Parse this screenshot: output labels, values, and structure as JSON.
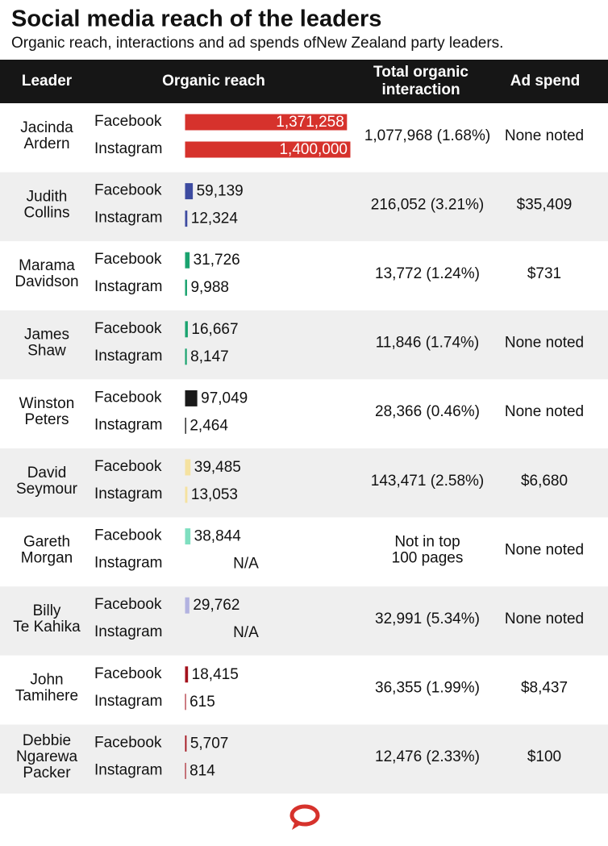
{
  "header": {
    "title": "Social media reach of the leaders",
    "subtitle": "Organic reach, interactions and ad spends ofNew Zealand party leaders."
  },
  "table": {
    "columns": [
      [
        "Leader"
      ],
      [
        "Organic reach"
      ],
      [
        "Total organic",
        "interaction"
      ],
      [
        "Ad spend"
      ]
    ],
    "rows": [
      {
        "leader": [
          "Jacinda",
          "Ardern"
        ],
        "color": "#d6322c",
        "reach": [
          {
            "platform": "Facebook",
            "value": 1371258,
            "label": "1,371,258"
          },
          {
            "platform": "Instagram",
            "value": 1400000,
            "label": "1,400,000"
          }
        ],
        "interaction": [
          "1,077,968 (1.68%)"
        ],
        "ad_spend": "None noted"
      },
      {
        "leader": [
          "Judith",
          "Collins"
        ],
        "color": "#3d4ba0",
        "reach": [
          {
            "platform": "Facebook",
            "value": 59139,
            "label": "59,139"
          },
          {
            "platform": "Instagram",
            "value": 12324,
            "label": "12,324"
          }
        ],
        "interaction": [
          "216,052 (3.21%)"
        ],
        "ad_spend": "$35,409"
      },
      {
        "leader": [
          "Marama",
          "Davidson"
        ],
        "color": "#1aa36f",
        "reach": [
          {
            "platform": "Facebook",
            "value": 31726,
            "label": "31,726"
          },
          {
            "platform": "Instagram",
            "value": 9988,
            "label": "9,988"
          }
        ],
        "interaction": [
          "13,772 (1.24%)"
        ],
        "ad_spend": "$731"
      },
      {
        "leader": [
          "James",
          "Shaw"
        ],
        "color": "#1aa36f",
        "reach": [
          {
            "platform": "Facebook",
            "value": 16667,
            "label": "16,667"
          },
          {
            "platform": "Instagram",
            "value": 8147,
            "label": "8,147"
          }
        ],
        "interaction": [
          "11,846 (1.74%)"
        ],
        "ad_spend": "None noted"
      },
      {
        "leader": [
          "Winston",
          "Peters"
        ],
        "color": "#1a1a1a",
        "reach": [
          {
            "platform": "Facebook",
            "value": 97049,
            "label": "97,049"
          },
          {
            "platform": "Instagram",
            "value": 2464,
            "label": "2,464"
          }
        ],
        "interaction": [
          "28,366 (0.46%)"
        ],
        "ad_spend": "None noted"
      },
      {
        "leader": [
          "David",
          "Seymour"
        ],
        "color": "#f5e2a0",
        "reach": [
          {
            "platform": "Facebook",
            "value": 39485,
            "label": "39,485"
          },
          {
            "platform": "Instagram",
            "value": 13053,
            "label": "13,053"
          }
        ],
        "interaction": [
          "143,471 (2.58%)"
        ],
        "ad_spend": "$6,680"
      },
      {
        "leader": [
          "Gareth",
          "Morgan"
        ],
        "color": "#7fdfc0",
        "reach": [
          {
            "platform": "Facebook",
            "value": 38844,
            "label": "38,844"
          },
          {
            "platform": "Instagram",
            "value": null,
            "label": "N/A"
          }
        ],
        "interaction": [
          "Not in top",
          "100 pages"
        ],
        "ad_spend": "None noted"
      },
      {
        "leader": [
          "Billy",
          "Te Kahika"
        ],
        "color": "#b3b3e0",
        "reach": [
          {
            "platform": "Facebook",
            "value": 29762,
            "label": "29,762"
          },
          {
            "platform": "Instagram",
            "value": null,
            "label": "N/A"
          }
        ],
        "interaction": [
          "32,991 (5.34%)"
        ],
        "ad_spend": "None noted"
      },
      {
        "leader": [
          "John",
          "Tamihere"
        ],
        "color": "#a3111c",
        "reach": [
          {
            "platform": "Facebook",
            "value": 18415,
            "label": "18,415"
          },
          {
            "platform": "Instagram",
            "value": 615,
            "label": "615"
          }
        ],
        "interaction": [
          "36,355 (1.99%)"
        ],
        "ad_spend": "$8,437"
      },
      {
        "leader": [
          "Debbie",
          "Ngarewa",
          "Packer"
        ],
        "color": "#a3111c",
        "reach": [
          {
            "platform": "Facebook",
            "value": 5707,
            "label": "5,707"
          },
          {
            "platform": "Instagram",
            "value": 814,
            "label": "814"
          }
        ],
        "interaction": [
          "12,476 (2.33%)"
        ],
        "ad_spend": "$100"
      }
    ]
  }
}
